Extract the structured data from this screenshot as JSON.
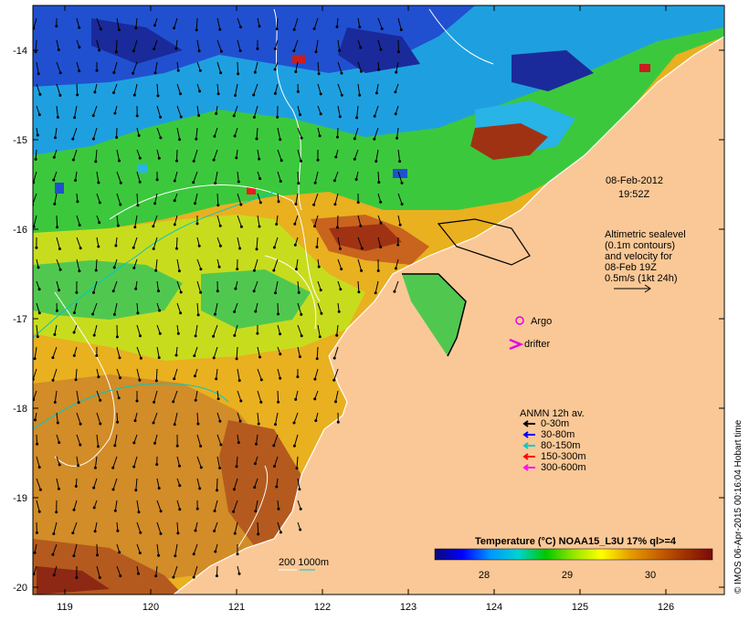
{
  "map": {
    "timestamp_date": "08-Feb-2012",
    "timestamp_time": "19:52Z",
    "altimetry_lines": [
      "Altimetric sealevel",
      "(0.1m contours)",
      "and velocity for",
      "08-Feb 19Z",
      "0.5m/s (1kt 24h)"
    ],
    "argo_label": "Argo",
    "drifter_label": "drifter",
    "anmn_title": "ANMN 12h av.",
    "anmn_legend": [
      {
        "label": "0-30m",
        "color": "#000000"
      },
      {
        "label": "30-80m",
        "color": "#0000ff"
      },
      {
        "label": "80-150m",
        "color": "#00c8c8"
      },
      {
        "label": "150-300m",
        "color": "#ff0000"
      },
      {
        "label": "300-600m",
        "color": "#ff00ff"
      }
    ],
    "bathy_label": "200  1000m",
    "colorbar_title": "Temperature (°C) NOAA15_L3U 17% ql>=4",
    "colorbar_ticks": [
      "28",
      "29",
      "30"
    ],
    "colorbar_colors": [
      "#0a0a7a",
      "#0000ff",
      "#0096ff",
      "#00d2d2",
      "#00c800",
      "#96e600",
      "#ffff00",
      "#e6a000",
      "#c86400",
      "#a03200",
      "#7a0a0a"
    ],
    "x_ticks": [
      "119",
      "120",
      "121",
      "122",
      "123",
      "124",
      "125",
      "126"
    ],
    "y_ticks": [
      "-14",
      "-15",
      "-16",
      "-17",
      "-18",
      "-19",
      "-20"
    ],
    "credit": "© IMOS 06-Apr-2015 00:16:04 Hobart time",
    "colors": {
      "land": "#fac896",
      "argo": "#e600e6",
      "drifter": "#e600e6"
    }
  }
}
